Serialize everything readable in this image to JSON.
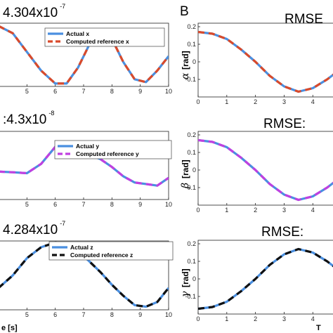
{
  "panel_label_b": "B",
  "chart_data": [
    {
      "type": "line",
      "id": "px",
      "title": "4.304x10",
      "title_exp": "-7",
      "xlim": [
        4,
        10
      ],
      "ylim": [
        -1.1,
        1.1
      ],
      "x_ticks": [
        5,
        6,
        7,
        8,
        9,
        10
      ],
      "y_ticks": [],
      "x": [
        4,
        4.5,
        5,
        5.5,
        6,
        6.4,
        6.8,
        7.2,
        7.6,
        8,
        8.4,
        8.8,
        9.2,
        9.6,
        10
      ],
      "series": [
        {
          "name": "Actual x",
          "color": "#4a8fe0",
          "dash": false,
          "y": [
            1.0,
            0.75,
            0.1,
            -0.55,
            -1.0,
            -1.0,
            -0.45,
            0.35,
            0.85,
            0.55,
            -0.25,
            -0.85,
            -0.95,
            -0.55,
            -0.05
          ]
        },
        {
          "name": "Computed reference x",
          "color": "#d94a2b",
          "dash": true,
          "y": [
            1.0,
            0.75,
            0.1,
            -0.55,
            -1.0,
            -1.0,
            -0.45,
            0.35,
            0.85,
            0.55,
            -0.25,
            -0.85,
            -0.95,
            -0.55,
            -0.05
          ]
        }
      ]
    },
    {
      "type": "line",
      "id": "py",
      "title": ":4.3x10",
      "title_exp": "-8",
      "xlim": [
        4,
        10
      ],
      "ylim": [
        -1.1,
        1.1
      ],
      "x_ticks": [
        5,
        6,
        7,
        8,
        9,
        10
      ],
      "y_ticks": [],
      "x": [
        4,
        4.5,
        5,
        5.5,
        6,
        6.4,
        6.8,
        7.2,
        7.6,
        8,
        8.4,
        8.8,
        9.2,
        9.6,
        10
      ],
      "series": [
        {
          "name": "Actual y",
          "color": "#4a8fe0",
          "dash": false,
          "y": [
            -0.2,
            -0.22,
            -0.25,
            0.05,
            0.6,
            0.65,
            0.55,
            0.35,
            0.2,
            -0.05,
            -0.35,
            -0.55,
            -0.6,
            -0.65,
            -0.4
          ]
        },
        {
          "name": "Computed reference y",
          "color": "#c040e0",
          "dash": true,
          "y": [
            -0.2,
            -0.22,
            -0.25,
            0.05,
            0.6,
            0.65,
            0.55,
            0.35,
            0.2,
            -0.05,
            -0.35,
            -0.55,
            -0.6,
            -0.65,
            -0.4
          ]
        }
      ]
    },
    {
      "type": "line",
      "id": "pz",
      "title": "4.284x10",
      "title_exp": "-7",
      "xlim": [
        4,
        10
      ],
      "ylim": [
        -1.1,
        1.1
      ],
      "x_ticks": [
        5,
        6,
        7,
        8,
        9,
        10
      ],
      "y_ticks": [],
      "xlabel": "e [s]",
      "x": [
        4,
        4.5,
        5,
        5.5,
        6,
        6.4,
        6.8,
        7.2,
        7.6,
        8,
        8.4,
        8.8,
        9.2,
        9.6,
        10
      ],
      "series": [
        {
          "name": "Actual z",
          "color": "#4a8fe0",
          "dash": false,
          "y": [
            -0.4,
            0.0,
            0.55,
            0.9,
            1.05,
            1.0,
            0.8,
            0.45,
            0.1,
            -0.3,
            -0.65,
            -0.95,
            -1.0,
            -0.85,
            -0.4
          ]
        },
        {
          "name": "Computed reference z",
          "color": "#111111",
          "dash": true,
          "y": [
            -0.4,
            0.0,
            0.55,
            0.9,
            1.05,
            1.0,
            0.8,
            0.45,
            0.1,
            -0.3,
            -0.65,
            -0.95,
            -1.0,
            -0.85,
            -0.4
          ]
        }
      ]
    },
    {
      "type": "line",
      "id": "pa",
      "title": "RMSE",
      "ylabel_symbol": "α",
      "ylabel_unit": "[rad]",
      "xlim": [
        0,
        4.9
      ],
      "ylim": [
        -0.2,
        0.22
      ],
      "x_ticks": [
        0,
        1,
        2,
        3,
        4
      ],
      "y_ticks": [
        0.2,
        0.1,
        0,
        -0.1
      ],
      "x_tick_labels": [
        "0",
        "1",
        "2",
        "3",
        "4"
      ],
      "y_tick_labels": [
        "0.2",
        "0.1",
        "0",
        "-0.1"
      ],
      "x": [
        0,
        0.5,
        1,
        1.5,
        2,
        2.5,
        3,
        3.5,
        4,
        4.5,
        4.9
      ],
      "series": [
        {
          "name": "",
          "color": "#4a8fe0",
          "dash": false,
          "y": [
            0.17,
            0.16,
            0.13,
            0.07,
            0.0,
            -0.08,
            -0.14,
            -0.17,
            -0.15,
            -0.1,
            -0.05
          ]
        },
        {
          "name": "",
          "color": "#d94a2b",
          "dash": true,
          "y": [
            0.17,
            0.16,
            0.13,
            0.07,
            0.0,
            -0.08,
            -0.14,
            -0.17,
            -0.15,
            -0.1,
            -0.05
          ]
        }
      ]
    },
    {
      "type": "line",
      "id": "pb",
      "title": "RMSE:",
      "ylabel_symbol": "β",
      "ylabel_unit": "[rad]",
      "xlim": [
        0,
        4.9
      ],
      "ylim": [
        -0.2,
        0.22
      ],
      "x_ticks": [
        0,
        1,
        2,
        3,
        4
      ],
      "y_ticks": [
        0.2,
        0.1,
        0,
        -0.1
      ],
      "x_tick_labels": [
        "0",
        "1",
        "2",
        "3",
        "4"
      ],
      "y_tick_labels": [
        "0.2",
        "0.1",
        "0",
        "-0.1"
      ],
      "x": [
        0,
        0.5,
        1,
        1.5,
        2,
        2.5,
        3,
        3.5,
        4,
        4.5,
        4.9
      ],
      "series": [
        {
          "name": "",
          "color": "#4a8fe0",
          "dash": false,
          "y": [
            0.17,
            0.16,
            0.13,
            0.07,
            0.0,
            -0.08,
            -0.14,
            -0.17,
            -0.15,
            -0.1,
            -0.05
          ]
        },
        {
          "name": "",
          "color": "#c040e0",
          "dash": true,
          "y": [
            0.17,
            0.16,
            0.13,
            0.07,
            0.0,
            -0.08,
            -0.14,
            -0.17,
            -0.15,
            -0.1,
            -0.05
          ]
        }
      ]
    },
    {
      "type": "line",
      "id": "pg",
      "title": "RMSE: ",
      "ylabel_symbol": "γ",
      "ylabel_unit": "[rad]",
      "xlabel": "T",
      "xlim": [
        0,
        4.9
      ],
      "ylim": [
        -0.2,
        0.22
      ],
      "x_ticks": [
        0,
        1,
        2,
        3,
        4
      ],
      "y_ticks": [
        0.2,
        0.1,
        0,
        -0.1
      ],
      "x_tick_labels": [
        "0",
        "1",
        "2",
        "3",
        "4"
      ],
      "y_tick_labels": [
        "0.2",
        "0.1",
        "0",
        "-0.1"
      ],
      "x": [
        0,
        0.5,
        1,
        1.5,
        2,
        2.5,
        3,
        3.5,
        4,
        4.5,
        4.9
      ],
      "series": [
        {
          "name": "",
          "color": "#4a8fe0",
          "dash": false,
          "y": [
            -0.17,
            -0.16,
            -0.13,
            -0.07,
            0.0,
            0.08,
            0.14,
            0.17,
            0.15,
            0.1,
            0.05
          ]
        },
        {
          "name": "",
          "color": "#111111",
          "dash": true,
          "y": [
            -0.17,
            -0.16,
            -0.13,
            -0.07,
            0.0,
            0.08,
            0.14,
            0.17,
            0.15,
            0.1,
            0.05
          ]
        }
      ]
    }
  ]
}
